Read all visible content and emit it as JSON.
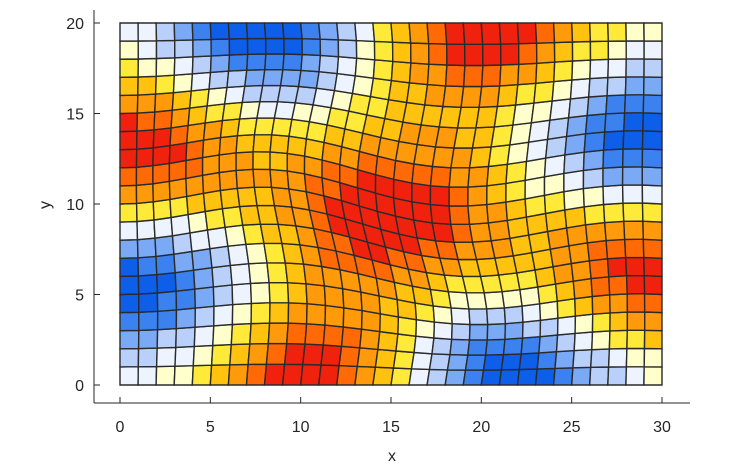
{
  "chart_data": {
    "type": "heatmap",
    "title": "",
    "xlabel": "x",
    "ylabel": "y",
    "xlim": [
      0,
      30
    ],
    "ylim": [
      0,
      20
    ],
    "x_ticks": [
      0,
      5,
      10,
      15,
      20,
      25,
      30
    ],
    "y_ticks": [
      0,
      5,
      10,
      15,
      20
    ],
    "x_tick_labels": [
      "0",
      "5",
      "10",
      "15",
      "20",
      "25",
      "30"
    ],
    "y_tick_labels": [
      "0",
      "5",
      "10",
      "15",
      "20"
    ],
    "grid": false,
    "mesh": {
      "columns": 31,
      "rows": 21,
      "description": "distorted quadrilateral mesh; cell colour encodes a smooth wave field",
      "hot_spots": [
        {
          "x": 1,
          "y": 13
        },
        {
          "x": 10.5,
          "y": 0.5
        },
        {
          "x": 15,
          "y": 9.5
        },
        {
          "x": 20,
          "y": 19.5
        },
        {
          "x": 29,
          "y": 6.5
        }
      ],
      "cold_spots": [
        {
          "x": 8,
          "y": 19.5
        },
        {
          "x": 1,
          "y": 5.5
        },
        {
          "x": 21.5,
          "y": 0.5
        },
        {
          "x": 29,
          "y": 13.5
        }
      ]
    },
    "colormap": [
      "#0d5ee8",
      "#3b82f0",
      "#7aa9f5",
      "#b9d1fa",
      "#eef4ff",
      "#ffffcc",
      "#ffea3a",
      "#ffc20e",
      "#ff9a0a",
      "#ff6a06",
      "#f0220d"
    ],
    "edge_color": "#2b2b2b",
    "axis_color": "#262626"
  }
}
